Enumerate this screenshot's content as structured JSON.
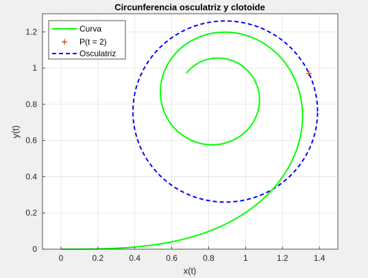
{
  "chart_data": {
    "type": "line",
    "title": "Circunferencia osculatriz y clotoide",
    "xlabel": "x(t)",
    "ylabel": "y(t)",
    "xlim": [
      -0.1,
      1.5
    ],
    "ylim": [
      0,
      1.3
    ],
    "xticks": [
      0,
      0.2,
      0.4,
      0.6,
      0.8,
      1,
      1.2,
      1.4
    ],
    "xtick_labels": [
      "0",
      "0.2",
      "0.4",
      "0.6",
      "0.8",
      "1",
      "1.2",
      "1.4"
    ],
    "yticks": [
      0,
      0.2,
      0.4,
      0.6,
      0.8,
      1,
      1.2
    ],
    "ytick_labels": [
      "0",
      "0.2",
      "0.4",
      "0.6",
      "0.8",
      "1",
      "1.2"
    ],
    "grid": true,
    "legend_position": "top-left",
    "series": [
      {
        "name": "Curva",
        "kind": "clothoid",
        "t_range": [
          0,
          5.6
        ],
        "color": "#00ff00",
        "line_style": "solid"
      },
      {
        "name": "P(t = 2)",
        "kind": "point",
        "x": 1.343,
        "y": 0.9703,
        "color": "#d95319",
        "marker": "plus"
      },
      {
        "name": "Osculatriz",
        "kind": "circle",
        "center": [
          0.89,
          0.76
        ],
        "radius": 0.5,
        "color": "#0000ff",
        "line_style": "dashed"
      }
    ]
  },
  "colors": {
    "figure_background": "#f0f0f0",
    "axes_background": "#ffffff",
    "grid": "#e3e3e3",
    "axis": "#262626"
  }
}
